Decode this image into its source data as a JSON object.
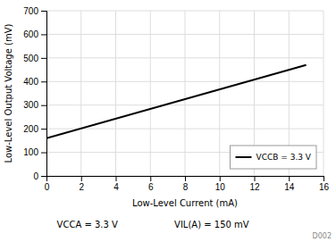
{
  "chart_data": {
    "type": "line",
    "x": [
      0,
      15
    ],
    "series": [
      {
        "name": "VCCB = 3.3 V",
        "color": "#000000",
        "values": [
          160,
          470
        ]
      }
    ],
    "xlabel": "Low-Level Current (mA)",
    "ylabel": "Low-Level Output Voltage (mV)",
    "xlim": [
      0,
      16
    ],
    "ylim": [
      0,
      700
    ],
    "xticks": [
      0,
      2,
      4,
      6,
      8,
      10,
      12,
      14,
      16
    ],
    "yticks": [
      0,
      100,
      200,
      300,
      400,
      500,
      600,
      700
    ],
    "grid": true,
    "legend": "lower right",
    "annotations": [
      "VCCA = 3.3 V",
      "VIL(A) = 150 mV",
      "D002"
    ]
  }
}
